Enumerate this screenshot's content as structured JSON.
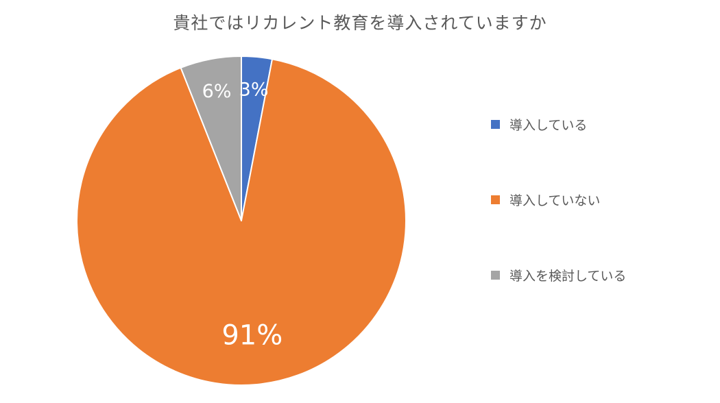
{
  "chart_data": {
    "type": "pie",
    "title": "貴社ではリカレント教育を導入されていますか",
    "slices": [
      {
        "label": "導入している",
        "value": 3,
        "display": "3%",
        "color": "#4472C4"
      },
      {
        "label": "導入していない",
        "value": 91,
        "display": "91%",
        "color": "#ED7D31"
      },
      {
        "label": "導入を検討している",
        "value": 6,
        "display": "6%",
        "color": "#A5A5A5"
      }
    ],
    "start_angle_deg": 0,
    "direction": "clockwise",
    "legend_position": "right",
    "slice_border_color": "#ffffff"
  }
}
